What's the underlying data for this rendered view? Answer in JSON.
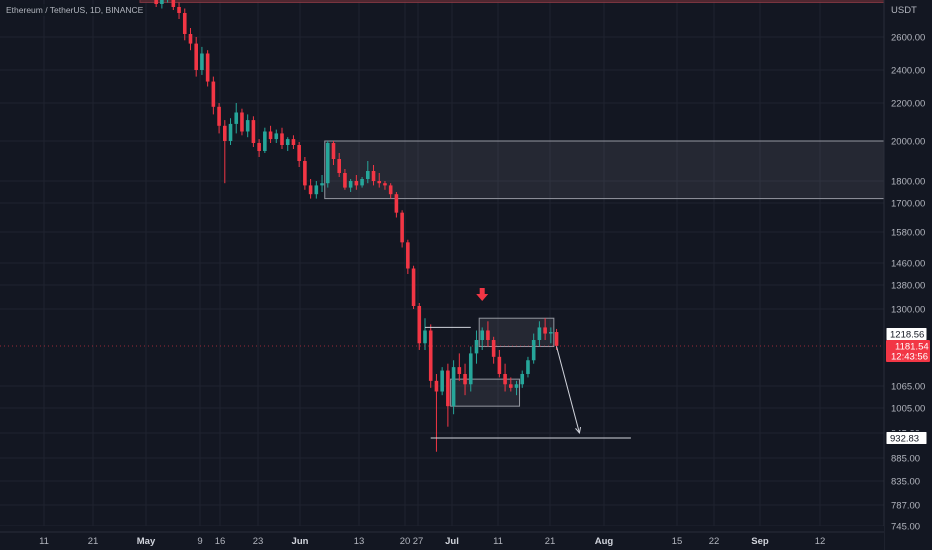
{
  "header": {
    "symbol_title": "Ethereum / TetherUS, 1D, BINANCE"
  },
  "axis": {
    "currency": "USDT"
  },
  "chart_data": {
    "type": "candlestick",
    "title": "Ethereum / TetherUS, 1D, BINANCE",
    "y_unit": "USDT",
    "ylim": [
      720,
      2900
    ],
    "y_ticks": [
      2600,
      2400,
      2200,
      2000,
      1800,
      1700,
      1580,
      1460,
      1380,
      1300,
      1065,
      1005,
      945,
      885,
      835,
      787,
      745
    ],
    "y_tick_labels": [
      "2600.00",
      "2400.00",
      "2200.00",
      "2000.00",
      "1800.00",
      "1700.00",
      "1580.00",
      "1460.00",
      "1380.00",
      "1300.00",
      "1065.00",
      "1005.00",
      "945.00",
      "885.00",
      "835.00",
      "787.00",
      "745.00"
    ],
    "x_ticks": [
      {
        "label": "11",
        "bold": false
      },
      {
        "label": "21",
        "bold": false
      },
      {
        "label": "May",
        "bold": true
      },
      {
        "label": "9",
        "bold": false
      },
      {
        "label": "16",
        "bold": false
      },
      {
        "label": "23",
        "bold": false
      },
      {
        "label": "Jun",
        "bold": true
      },
      {
        "label": "13",
        "bold": false
      },
      {
        "label": "20",
        "bold": false
      },
      {
        "label": "27",
        "bold": false
      },
      {
        "label": "Jul",
        "bold": true
      },
      {
        "label": "11",
        "bold": false
      },
      {
        "label": "21",
        "bold": false
      },
      {
        "label": "Aug",
        "bold": true
      },
      {
        "label": "15",
        "bold": false
      },
      {
        "label": "22",
        "bold": false
      },
      {
        "label": "Sep",
        "bold": true
      },
      {
        "label": "12",
        "bold": false
      }
    ],
    "candles": [
      {
        "o": 2940,
        "h": 2990,
        "l": 2880,
        "c": 2900
      },
      {
        "o": 2900,
        "h": 2960,
        "l": 2860,
        "c": 2930
      },
      {
        "o": 2930,
        "h": 2980,
        "l": 2850,
        "c": 2870
      },
      {
        "o": 2870,
        "h": 2920,
        "l": 2800,
        "c": 2820
      },
      {
        "o": 2820,
        "h": 2880,
        "l": 2790,
        "c": 2860
      },
      {
        "o": 2860,
        "h": 2930,
        "l": 2830,
        "c": 2910
      },
      {
        "o": 2910,
        "h": 2950,
        "l": 2780,
        "c": 2800
      },
      {
        "o": 2800,
        "h": 2830,
        "l": 2720,
        "c": 2760
      },
      {
        "o": 2760,
        "h": 2790,
        "l": 2580,
        "c": 2620
      },
      {
        "o": 2620,
        "h": 2660,
        "l": 2520,
        "c": 2560
      },
      {
        "o": 2560,
        "h": 2600,
        "l": 2360,
        "c": 2400
      },
      {
        "o": 2400,
        "h": 2540,
        "l": 2370,
        "c": 2500
      },
      {
        "o": 2500,
        "h": 2520,
        "l": 2300,
        "c": 2330
      },
      {
        "o": 2330,
        "h": 2360,
        "l": 2140,
        "c": 2180
      },
      {
        "o": 2180,
        "h": 2200,
        "l": 2040,
        "c": 2080
      },
      {
        "o": 2080,
        "h": 2110,
        "l": 1790,
        "c": 2000
      },
      {
        "o": 2000,
        "h": 2120,
        "l": 1980,
        "c": 2090
      },
      {
        "o": 2090,
        "h": 2200,
        "l": 2040,
        "c": 2150
      },
      {
        "o": 2150,
        "h": 2170,
        "l": 2030,
        "c": 2050
      },
      {
        "o": 2050,
        "h": 2140,
        "l": 2020,
        "c": 2110
      },
      {
        "o": 2110,
        "h": 2130,
        "l": 1970,
        "c": 1990
      },
      {
        "o": 1990,
        "h": 2010,
        "l": 1920,
        "c": 1950
      },
      {
        "o": 1950,
        "h": 2070,
        "l": 1940,
        "c": 2050
      },
      {
        "o": 2050,
        "h": 2080,
        "l": 1990,
        "c": 2010
      },
      {
        "o": 2010,
        "h": 2060,
        "l": 1990,
        "c": 2040
      },
      {
        "o": 2040,
        "h": 2070,
        "l": 1960,
        "c": 1980
      },
      {
        "o": 1980,
        "h": 2020,
        "l": 1950,
        "c": 2010
      },
      {
        "o": 2010,
        "h": 2030,
        "l": 1960,
        "c": 1980
      },
      {
        "o": 1980,
        "h": 1995,
        "l": 1870,
        "c": 1900
      },
      {
        "o": 1900,
        "h": 1920,
        "l": 1760,
        "c": 1780
      },
      {
        "o": 1780,
        "h": 1810,
        "l": 1720,
        "c": 1740
      },
      {
        "o": 1740,
        "h": 1800,
        "l": 1720,
        "c": 1780
      },
      {
        "o": 1780,
        "h": 1830,
        "l": 1750,
        "c": 1790
      },
      {
        "o": 1790,
        "h": 2000,
        "l": 1770,
        "c": 1990
      },
      {
        "o": 1990,
        "h": 2000,
        "l": 1880,
        "c": 1910
      },
      {
        "o": 1910,
        "h": 1940,
        "l": 1820,
        "c": 1840
      },
      {
        "o": 1840,
        "h": 1860,
        "l": 1760,
        "c": 1770
      },
      {
        "o": 1770,
        "h": 1810,
        "l": 1750,
        "c": 1800
      },
      {
        "o": 1800,
        "h": 1830,
        "l": 1760,
        "c": 1780
      },
      {
        "o": 1780,
        "h": 1820,
        "l": 1770,
        "c": 1810
      },
      {
        "o": 1810,
        "h": 1900,
        "l": 1790,
        "c": 1850
      },
      {
        "o": 1850,
        "h": 1880,
        "l": 1780,
        "c": 1800
      },
      {
        "o": 1800,
        "h": 1840,
        "l": 1770,
        "c": 1790
      },
      {
        "o": 1790,
        "h": 1800,
        "l": 1760,
        "c": 1780
      },
      {
        "o": 1780,
        "h": 1790,
        "l": 1720,
        "c": 1740
      },
      {
        "o": 1740,
        "h": 1750,
        "l": 1640,
        "c": 1660
      },
      {
        "o": 1660,
        "h": 1670,
        "l": 1520,
        "c": 1540
      },
      {
        "o": 1540,
        "h": 1550,
        "l": 1420,
        "c": 1440
      },
      {
        "o": 1440,
        "h": 1450,
        "l": 1300,
        "c": 1310
      },
      {
        "o": 1310,
        "h": 1320,
        "l": 1170,
        "c": 1190
      },
      {
        "o": 1190,
        "h": 1270,
        "l": 1170,
        "c": 1230
      },
      {
        "o": 1230,
        "h": 1250,
        "l": 1060,
        "c": 1080
      },
      {
        "o": 1080,
        "h": 1100,
        "l": 900,
        "c": 1050
      },
      {
        "o": 1050,
        "h": 1120,
        "l": 1040,
        "c": 1110
      },
      {
        "o": 1110,
        "h": 1130,
        "l": 960,
        "c": 1010
      },
      {
        "o": 1010,
        "h": 1140,
        "l": 990,
        "c": 1120
      },
      {
        "o": 1120,
        "h": 1160,
        "l": 1080,
        "c": 1100
      },
      {
        "o": 1100,
        "h": 1130,
        "l": 1040,
        "c": 1070
      },
      {
        "o": 1070,
        "h": 1180,
        "l": 1050,
        "c": 1160
      },
      {
        "o": 1160,
        "h": 1230,
        "l": 1130,
        "c": 1200
      },
      {
        "o": 1200,
        "h": 1240,
        "l": 1170,
        "c": 1230
      },
      {
        "o": 1230,
        "h": 1260,
        "l": 1180,
        "c": 1200
      },
      {
        "o": 1200,
        "h": 1210,
        "l": 1130,
        "c": 1150
      },
      {
        "o": 1150,
        "h": 1170,
        "l": 1090,
        "c": 1100
      },
      {
        "o": 1100,
        "h": 1130,
        "l": 1050,
        "c": 1070
      },
      {
        "o": 1070,
        "h": 1090,
        "l": 1050,
        "c": 1060
      },
      {
        "o": 1060,
        "h": 1080,
        "l": 1040,
        "c": 1070
      },
      {
        "o": 1070,
        "h": 1110,
        "l": 1060,
        "c": 1100
      },
      {
        "o": 1100,
        "h": 1150,
        "l": 1090,
        "c": 1140
      },
      {
        "o": 1140,
        "h": 1220,
        "l": 1130,
        "c": 1200
      },
      {
        "o": 1200,
        "h": 1260,
        "l": 1180,
        "c": 1240
      },
      {
        "o": 1240,
        "h": 1270,
        "l": 1200,
        "c": 1220
      },
      {
        "o": 1220,
        "h": 1240,
        "l": 1190,
        "c": 1225
      },
      {
        "o": 1225,
        "h": 1235,
        "l": 1170,
        "c": 1182
      }
    ],
    "zones": [
      {
        "name": "resistance-zone-upper",
        "x_start_index": 33,
        "x_end_index": null,
        "y_top": 2000,
        "y_bottom": 1720
      },
      {
        "name": "consolidation-zone",
        "x_start_index": 60,
        "x_end_index": 72,
        "y_top": 1270,
        "y_bottom": 1180
      },
      {
        "name": "range-box",
        "x_start_index": 55,
        "x_end_index": 66,
        "y_top": 1085,
        "y_bottom": 1010
      }
    ],
    "top_band": {
      "y_top": 2900,
      "y_bottom": 2830,
      "color": "#5a2a33"
    },
    "lines": [
      {
        "name": "range-high-line",
        "from": {
          "i": 50,
          "y": 1240
        },
        "to": {
          "i": 58,
          "y": 1240
        }
      },
      {
        "name": "target-level-line",
        "from": {
          "i": 51,
          "y": 932.83
        },
        "to": {
          "i": 86,
          "y": 932.83
        }
      },
      {
        "name": "projection-arrow",
        "from": {
          "i": 73,
          "y": 1180
        },
        "to": {
          "i": 77,
          "y": 945
        }
      }
    ],
    "marker": {
      "name": "down-arrow-marker",
      "i": 60,
      "y": 1330,
      "color": "#f23645"
    },
    "price_labels": [
      {
        "name": "price-label-1218",
        "text": "1218.56",
        "y": 1218.56,
        "style": "outline"
      },
      {
        "name": "current-price-label",
        "text": "1181.54",
        "sub": "12:43:56",
        "y": 1181.54,
        "style": "red"
      },
      {
        "name": "target-price-label",
        "text": "932.83",
        "y": 932.83,
        "style": "outline"
      }
    ],
    "colors": {
      "up": "#26a69a",
      "down": "#f23645",
      "background": "#131722",
      "grid": "#1f2330"
    },
    "grid": true
  }
}
